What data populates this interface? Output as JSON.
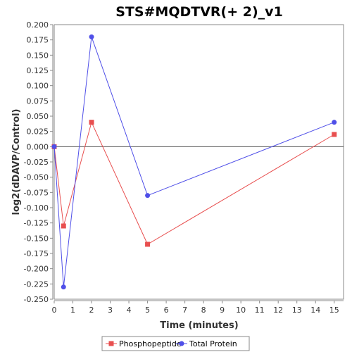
{
  "chart_data": {
    "type": "line",
    "title": "STS#MQDTVR(+ 2)_v1",
    "xlabel": "Time (minutes)",
    "ylabel": "log2(dDAVP/Control)",
    "xlim": [
      0,
      15.5
    ],
    "ylim": [
      -0.25,
      0.2
    ],
    "x_ticks": [
      0,
      1,
      2,
      3,
      4,
      5,
      6,
      7,
      8,
      9,
      10,
      11,
      12,
      13,
      14,
      15
    ],
    "y_ticks": [
      0.2,
      0.175,
      0.15,
      0.125,
      0.1,
      0.075,
      0.05,
      0.025,
      0.0,
      -0.025,
      -0.05,
      -0.075,
      -0.1,
      -0.125,
      -0.15,
      -0.175,
      -0.2,
      -0.225,
      -0.25
    ],
    "y_tick_labels": [
      "0.200",
      "0.175",
      "0.150",
      "0.125",
      "0.100",
      "0.075",
      "0.050",
      "0.025",
      "0.000",
      "-0.025",
      "-0.050",
      "-0.075",
      "-0.100",
      "-0.125",
      "-0.150",
      "-0.175",
      "-0.200",
      "-0.225",
      "-0.250"
    ],
    "legend_position": "bottom",
    "series": [
      {
        "name": "Phosphopeptide",
        "marker": "square",
        "color": "#e84f4f",
        "x": [
          0,
          0.5,
          2,
          5,
          15
        ],
        "y": [
          0.0,
          -0.13,
          0.04,
          -0.16,
          0.02
        ]
      },
      {
        "name": "Total Protein",
        "marker": "circle",
        "color": "#4f4fe8",
        "x": [
          0,
          0.5,
          2,
          5,
          15
        ],
        "y": [
          0.0,
          -0.23,
          0.18,
          -0.08,
          0.04
        ]
      }
    ]
  }
}
